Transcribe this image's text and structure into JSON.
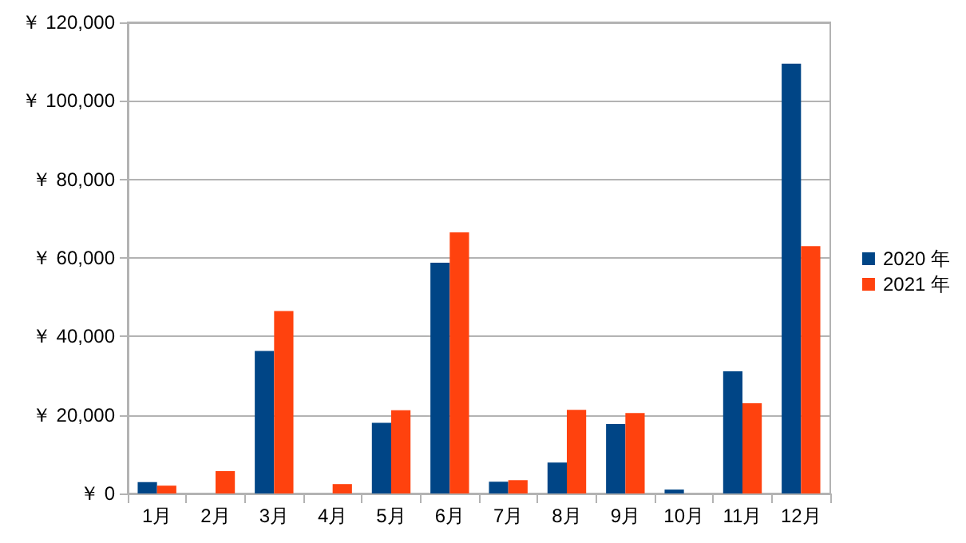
{
  "chart_data": {
    "type": "bar",
    "categories": [
      "1月",
      "2月",
      "3月",
      "4月",
      "5月",
      "6月",
      "7月",
      "8月",
      "9月",
      "10月",
      "11月",
      "12月"
    ],
    "series": [
      {
        "name": "2020 年",
        "color": "#004586",
        "values": [
          2900,
          0,
          36300,
          0,
          18000,
          58800,
          3000,
          7900,
          17700,
          1000,
          31100,
          109500
        ]
      },
      {
        "name": "2021 年",
        "color": "#ff420e",
        "values": [
          2000,
          5700,
          46500,
          2400,
          21200,
          66500,
          3400,
          21300,
          20500,
          0,
          23000,
          63000
        ]
      }
    ],
    "ylim": [
      0,
      120000
    ],
    "yticks": [
      {
        "value": 0,
        "label": "￥ 0"
      },
      {
        "value": 20000,
        "label": "￥ 20,000"
      },
      {
        "value": 40000,
        "label": "￥ 40,000"
      },
      {
        "value": 60000,
        "label": "￥ 60,000"
      },
      {
        "value": 80000,
        "label": "￥ 80,000"
      },
      {
        "value": 100000,
        "label": "￥ 100,000"
      },
      {
        "value": 120000,
        "label": "￥ 120,000"
      }
    ],
    "grid": "y",
    "legend": "right"
  }
}
